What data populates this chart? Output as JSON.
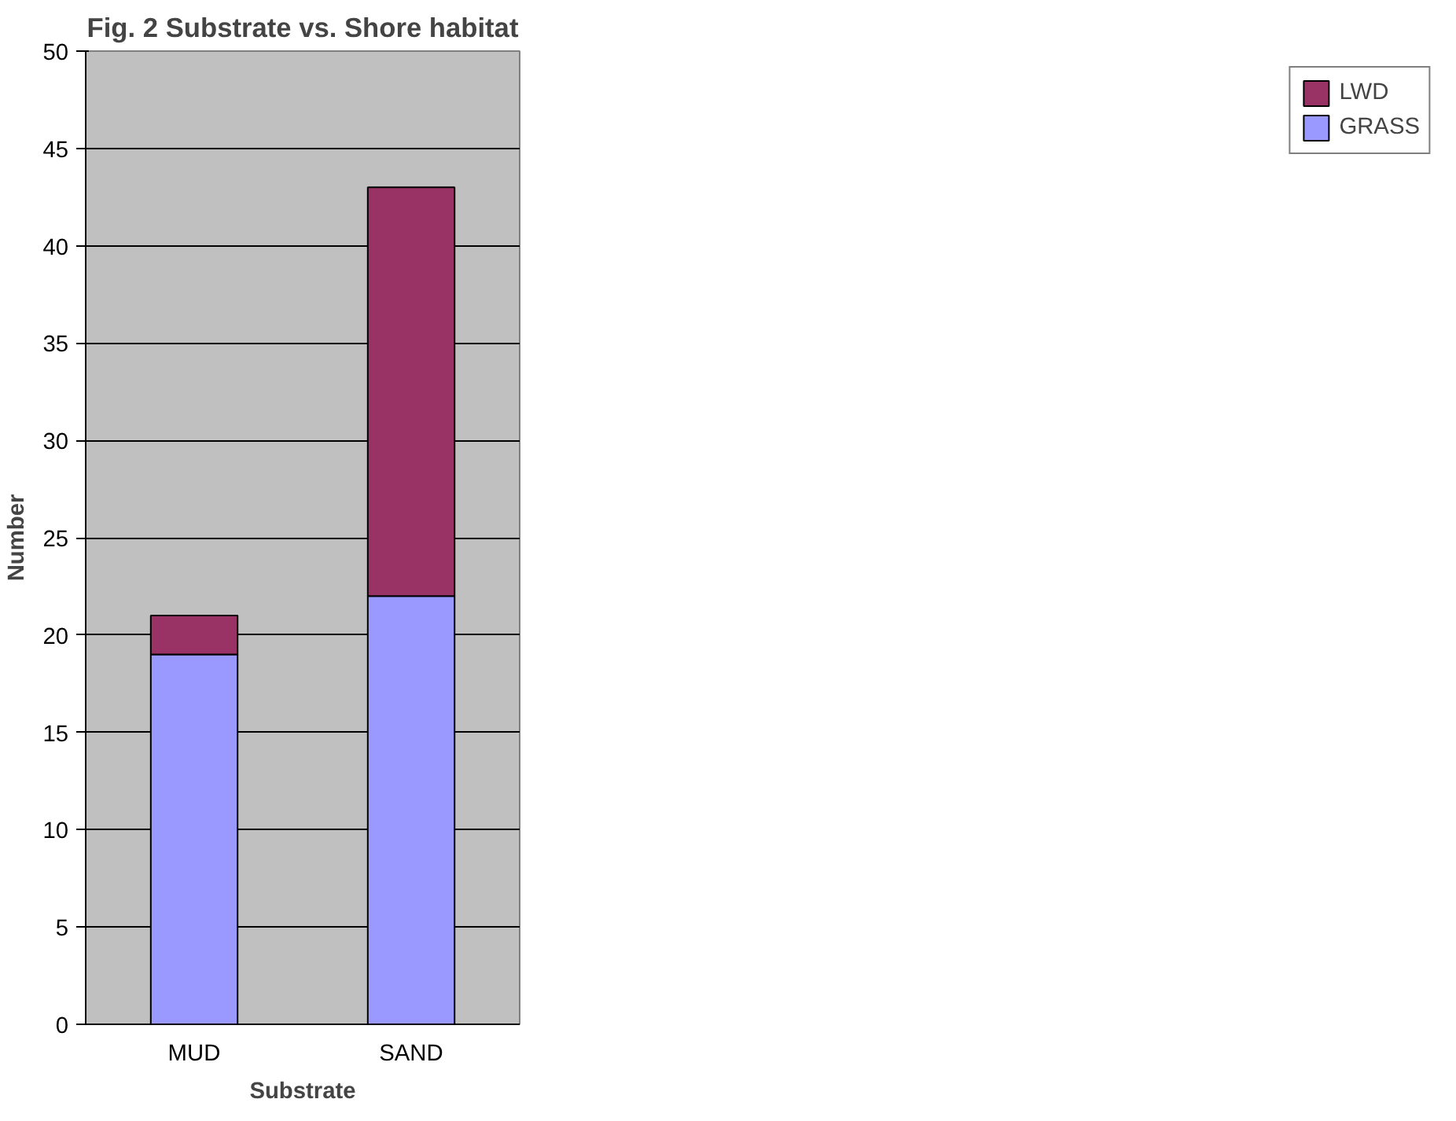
{
  "chart_data": {
    "type": "bar",
    "title": "Fig. 2 Substrate vs. Shore habitat",
    "xlabel": "Substrate",
    "ylabel": "Number",
    "categories": [
      "MUD",
      "SAND"
    ],
    "series": [
      {
        "name": "GRASS",
        "color": "#9999ff",
        "values": [
          19,
          22
        ]
      },
      {
        "name": "LWD",
        "color": "#993366",
        "values": [
          2,
          21
        ]
      }
    ],
    "stacked": true,
    "ylim": [
      0,
      50
    ],
    "yticks": [
      0,
      5,
      10,
      15,
      20,
      25,
      30,
      35,
      40,
      45,
      50
    ],
    "grid": "y",
    "legend": "right"
  }
}
